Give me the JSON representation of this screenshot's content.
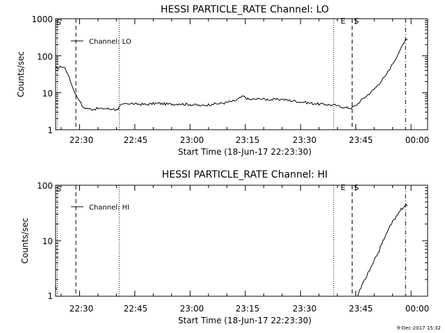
{
  "footer": {
    "timestamp": "9-Dec-2017 15:32"
  },
  "chart_data": [
    {
      "type": "line",
      "title": "HESSI PARTICLE_RATE Channel: LO",
      "xlabel": "Start Time (18-Jun-17 22:23:30)",
      "ylabel": "Counts/sec",
      "yscale": "log",
      "ylim": [
        1,
        1000
      ],
      "xlim": [
        "22:23:30",
        "00:04:30"
      ],
      "x_ticks": [
        "22:30",
        "22:45",
        "23:00",
        "23:15",
        "23:30",
        "23:45",
        "00:00"
      ],
      "y_ticks": [
        "1",
        "10",
        "100",
        "1000"
      ],
      "legend": {
        "position": "top-left",
        "entries": [
          "Channel: LO"
        ]
      },
      "markers": [
        {
          "label": "S",
          "time": "22:24:00",
          "style": "dotted"
        },
        {
          "label": "",
          "time": "22:29:00",
          "style": "dashed"
        },
        {
          "label": "",
          "time": "22:40:45",
          "style": "dotted"
        },
        {
          "label": "E",
          "time": "23:39:00",
          "style": "dotted"
        },
        {
          "label": "S",
          "time": "23:44:00",
          "style": "dashed"
        },
        {
          "label": "",
          "time": "23:58:30",
          "style": "dashdot"
        }
      ],
      "series": [
        {
          "name": "Channel: LO",
          "points": [
            [
              "22:23:30",
              45
            ],
            [
              "22:25:00",
              50
            ],
            [
              "22:26:00",
              48
            ],
            [
              "22:27:00",
              30
            ],
            [
              "22:28:00",
              15
            ],
            [
              "22:29:00",
              9
            ],
            [
              "22:30:00",
              6
            ],
            [
              "22:31:00",
              4
            ],
            [
              "22:33:00",
              3.6
            ],
            [
              "22:36:00",
              3.8
            ],
            [
              "22:39:00",
              3.6
            ],
            [
              "22:40:30",
              3.5
            ],
            [
              "22:41:00",
              4.5
            ],
            [
              "22:42:30",
              5.2
            ],
            [
              "22:45:00",
              5.0
            ],
            [
              "22:48:00",
              4.8
            ],
            [
              "22:51:00",
              5.2
            ],
            [
              "22:54:00",
              4.9
            ],
            [
              "22:57:00",
              5.0
            ],
            [
              "23:00:00",
              4.8
            ],
            [
              "23:03:00",
              4.5
            ],
            [
              "23:06:00",
              4.9
            ],
            [
              "23:09:00",
              5.2
            ],
            [
              "23:12:00",
              6.0
            ],
            [
              "23:14:30",
              8.0
            ],
            [
              "23:16:00",
              6.5
            ],
            [
              "23:19:00",
              6.8
            ],
            [
              "23:22:00",
              6.5
            ],
            [
              "23:25:00",
              6.6
            ],
            [
              "23:28:00",
              6.0
            ],
            [
              "23:31:00",
              5.5
            ],
            [
              "23:34:00",
              5.0
            ],
            [
              "23:37:00",
              4.8
            ],
            [
              "23:40:00",
              4.5
            ],
            [
              "23:42:00",
              4.0
            ],
            [
              "23:43:30",
              3.8
            ],
            [
              "23:45:00",
              4.5
            ],
            [
              "23:47:00",
              7.0
            ],
            [
              "23:49:00",
              10
            ],
            [
              "23:51:00",
              16
            ],
            [
              "23:53:00",
              28
            ],
            [
              "23:55:00",
              60
            ],
            [
              "23:57:00",
              140
            ],
            [
              "23:58:30",
              280
            ],
            [
              "23:59:00",
              290
            ]
          ]
        }
      ]
    },
    {
      "type": "line",
      "title": "HESSI PARTICLE_RATE Channel: HI",
      "xlabel": "Start Time (18-Jun-17 22:23:30)",
      "ylabel": "Counts/sec",
      "yscale": "log",
      "ylim": [
        1,
        100
      ],
      "xlim": [
        "22:23:30",
        "00:04:30"
      ],
      "x_ticks": [
        "22:30",
        "22:45",
        "23:00",
        "23:15",
        "23:30",
        "23:45",
        "00:00"
      ],
      "y_ticks": [
        "1",
        "10",
        "100"
      ],
      "legend": {
        "position": "top-left",
        "entries": [
          "Channel: HI"
        ]
      },
      "markers": [
        {
          "label": "S",
          "time": "22:24:00",
          "style": "dotted"
        },
        {
          "label": "",
          "time": "22:29:00",
          "style": "dashed"
        },
        {
          "label": "",
          "time": "22:40:45",
          "style": "dotted"
        },
        {
          "label": "E",
          "time": "23:39:00",
          "style": "dotted"
        },
        {
          "label": "S",
          "time": "23:44:00",
          "style": "dashed"
        },
        {
          "label": "",
          "time": "23:58:30",
          "style": "dashdot"
        }
      ],
      "series": [
        {
          "name": "Channel: HI",
          "points": [
            [
              "22:23:30",
              1.5
            ],
            [
              "22:24:00",
              1.0
            ],
            [
              "23:45:30",
              1.0
            ],
            [
              "23:46:00",
              1.3
            ],
            [
              "23:47:00",
              1.8
            ],
            [
              "23:48:00",
              2.3
            ],
            [
              "23:49:00",
              3.2
            ],
            [
              "23:50:00",
              4.5
            ],
            [
              "23:51:00",
              6.0
            ],
            [
              "23:52:00",
              8.5
            ],
            [
              "23:53:00",
              12
            ],
            [
              "23:54:00",
              17
            ],
            [
              "23:55:00",
              23
            ],
            [
              "23:56:00",
              28
            ],
            [
              "23:57:00",
              34
            ],
            [
              "23:58:00",
              40
            ],
            [
              "23:58:30",
              44
            ],
            [
              "23:59:00",
              42
            ]
          ]
        }
      ]
    }
  ]
}
